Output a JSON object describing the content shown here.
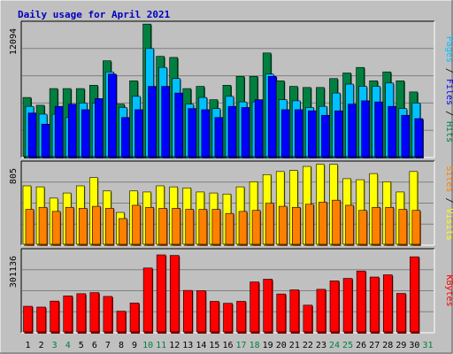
{
  "chart_data": {
    "type": "bar",
    "title": "Daily usage for April 2021",
    "categories": [
      "1",
      "2",
      "3",
      "4",
      "5",
      "6",
      "7",
      "8",
      "9",
      "10",
      "11",
      "12",
      "13",
      "14",
      "15",
      "16",
      "17",
      "18",
      "19",
      "20",
      "21",
      "22",
      "23",
      "24",
      "25",
      "26",
      "27",
      "28",
      "29",
      "30",
      "31"
    ],
    "weekend_days": [
      "3",
      "4",
      "10",
      "11",
      "17",
      "18",
      "24",
      "25",
      "31"
    ],
    "panels": [
      {
        "name": "hits-files-pages",
        "ymax_label": "12094",
        "ymax": 12094,
        "axis_label_parts": [
          "Pages",
          " / ",
          "Files",
          " / ",
          "Hits"
        ],
        "series": [
          {
            "name": "Hits",
            "color": "#008040",
            "values": [
              5400,
              4700,
              6200,
              6200,
              6200,
              6500,
              8700,
              4800,
              6900,
              12000,
              9100,
              9000,
              6200,
              6400,
              5200,
              6500,
              7300,
              7300,
              9400,
              6900,
              6400,
              6300,
              6300,
              7100,
              7600,
              8100,
              6900,
              7700,
              6900,
              5900,
              0
            ]
          },
          {
            "name": "Files",
            "color": "#00c0ff",
            "values": [
              4600,
              3900,
              3900,
              3600,
              4900,
              4900,
              7700,
              4500,
              5500,
              9800,
              8100,
              7100,
              4800,
              5400,
              4400,
              5500,
              5000,
              5000,
              7500,
              5200,
              5100,
              4500,
              4600,
              5800,
              6600,
              6400,
              6400,
              6700,
              4400,
              4900,
              0
            ]
          },
          {
            "name": "Pages",
            "color": "#0000ff",
            "values": [
              4000,
              3000,
              4600,
              4800,
              4300,
              5300,
              7500,
              3600,
              4300,
              6400,
              6400,
              5800,
              4400,
              4300,
              3600,
              4600,
              4500,
              5200,
              7300,
              4300,
              4300,
              4200,
              3800,
              4200,
              4800,
              5100,
              5000,
              4600,
              3800,
              3500,
              0
            ]
          }
        ]
      },
      {
        "name": "visits-sites",
        "ymax_label": "805",
        "ymax": 805,
        "axis_label_parts": [
          "Sites",
          " / ",
          "Visits"
        ],
        "series": [
          {
            "name": "Visits",
            "color": "#ffff00",
            "values": [
              580,
              570,
              460,
              510,
              580,
              660,
              530,
              320,
              530,
              520,
              580,
              570,
              560,
              520,
              510,
              500,
              570,
              620,
              690,
              720,
              730,
              770,
              790,
              790,
              650,
              640,
              700,
              620,
              520,
              720,
              0
            ]
          },
          {
            "name": "Sites",
            "color": "#ff8000",
            "values": [
              350,
              370,
              330,
              370,
              360,
              380,
              360,
              260,
              390,
              370,
              360,
              360,
              350,
              350,
              350,
              310,
              330,
              340,
              410,
              380,
              370,
              400,
              420,
              440,
              390,
              340,
              370,
              370,
              350,
              340,
              0
            ]
          }
        ]
      },
      {
        "name": "kbytes",
        "ymax_label": "301136",
        "ymax": 301136,
        "axis_label_parts": [
          "KBytes"
        ],
        "series": [
          {
            "name": "KBytes",
            "color": "#ff0000",
            "values": [
              97000,
              94000,
              116000,
              135000,
              143000,
              147000,
              133000,
              79000,
              109000,
              237000,
              285000,
              283000,
              155000,
              154000,
              115000,
              108000,
              115000,
              186000,
              196000,
              142000,
              157000,
              101000,
              159000,
              190000,
              199000,
              226000,
              204000,
              212000,
              144000,
              278000,
              0
            ]
          }
        ]
      }
    ]
  }
}
